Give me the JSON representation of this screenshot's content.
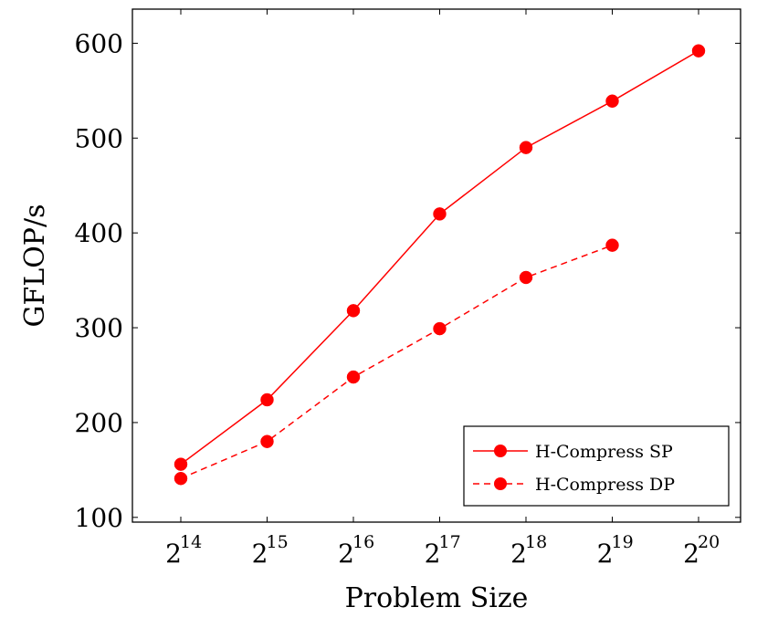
{
  "chart_data": {
    "type": "line",
    "xlabel": "Problem Size",
    "ylabel": "GFLOP/s",
    "x_scale": "log2",
    "x_tick_exponents": [
      "14",
      "15",
      "16",
      "17",
      "18",
      "19",
      "20"
    ],
    "x": [
      16384,
      32768,
      65536,
      131072,
      262144,
      524288,
      1048576
    ],
    "y_ticks": [
      "100",
      "200",
      "300",
      "400",
      "500",
      "600"
    ],
    "ylim": [
      95,
      636
    ],
    "grid": false,
    "legend_position": "bottom-right",
    "series": [
      {
        "name": "H-Compress SP",
        "style": "solid",
        "color": "#ff0000",
        "x": [
          16384,
          32768,
          65536,
          131072,
          262144,
          524288,
          1048576
        ],
        "values": [
          156,
          224,
          318,
          420,
          490,
          539,
          592
        ]
      },
      {
        "name": "H-Compress DP",
        "style": "dashed",
        "color": "#ff0000",
        "x": [
          16384,
          32768,
          65536,
          131072,
          262144,
          524288
        ],
        "values": [
          141,
          180,
          248,
          299,
          353,
          387
        ]
      }
    ]
  }
}
